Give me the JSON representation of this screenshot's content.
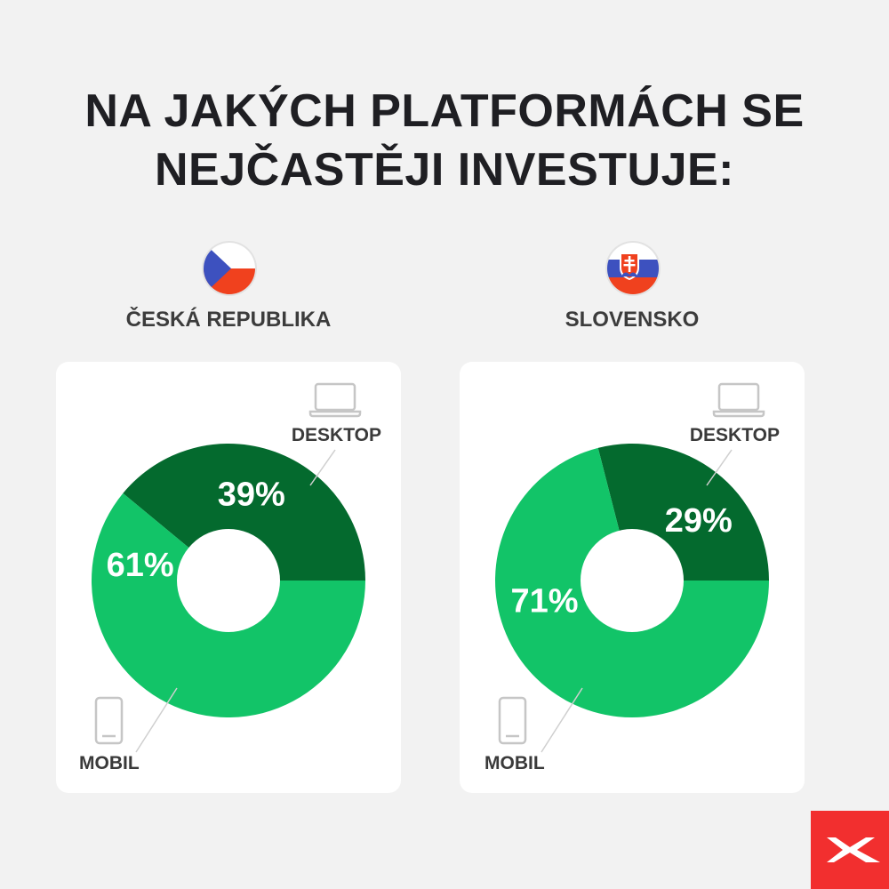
{
  "title": {
    "line1": "NA JAKÝCH PLATFORMÁCH SE",
    "line2": "NEJČASTĚJI INVESTUJE:"
  },
  "colors": {
    "desktop": "#046a2e",
    "mobil": "#12c468",
    "card": "#ffffff",
    "background": "#f2f2f2",
    "brand": "#f22f2f"
  },
  "chart_data": [
    {
      "type": "pie",
      "title": "ČESKÁ REPUBLIKA",
      "flag_icon": "czech-flag-icon",
      "series": [
        {
          "name": "DESKTOP",
          "value": 39,
          "label": "39%",
          "icon": "laptop-icon"
        },
        {
          "name": "MOBIL",
          "value": 61,
          "label": "61%",
          "icon": "smartphone-icon"
        }
      ]
    },
    {
      "type": "pie",
      "title": "SLOVENSKO",
      "flag_icon": "slovak-flag-icon",
      "series": [
        {
          "name": "DESKTOP",
          "value": 29,
          "label": "29%",
          "icon": "laptop-icon"
        },
        {
          "name": "MOBIL",
          "value": 71,
          "label": "71%",
          "icon": "smartphone-icon"
        }
      ]
    }
  ],
  "logo_icon": "xtb-logo-icon"
}
